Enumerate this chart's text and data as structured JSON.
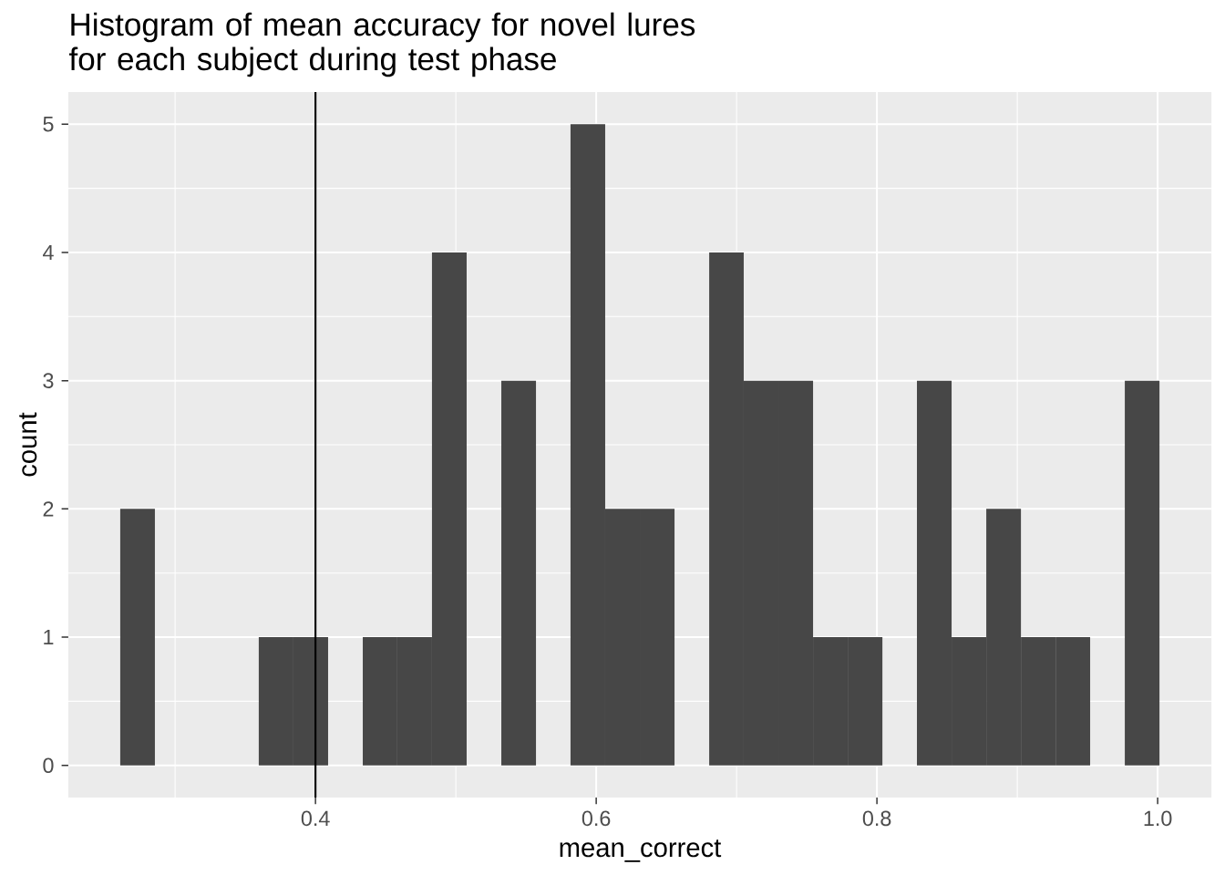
{
  "chart_data": {
    "type": "histogram",
    "title": "Histogram of mean accuracy for novel lures for each subject during test phase",
    "xlabel": "mean_correct",
    "ylabel": "count",
    "bins": [
      0.2609,
      0.2856,
      0.3103,
      0.3349,
      0.3596,
      0.3843,
      0.409,
      0.4337,
      0.4583,
      0.483,
      0.5077,
      0.5324,
      0.5571,
      0.5817,
      0.6064,
      0.6311,
      0.6558,
      0.6805,
      0.7051,
      0.7298,
      0.7545,
      0.7792,
      0.8039,
      0.8285,
      0.8532,
      0.8779,
      0.9026,
      0.9273,
      0.9519,
      0.9766,
      1.0013
    ],
    "values": [
      2,
      0,
      0,
      0,
      1,
      1,
      0,
      1,
      1,
      4,
      0,
      3,
      0,
      5,
      2,
      2,
      0,
      4,
      3,
      3,
      1,
      1,
      0,
      3,
      1,
      2,
      1,
      1,
      0,
      3
    ],
    "color": "#474747",
    "xlim": [
      0.2239,
      1.0383
    ],
    "ylim": [
      -0.25,
      5.25
    ],
    "xticks": [
      0.4,
      0.6,
      0.8,
      {
        "value": 1.0,
        "label": "1.0"
      }
    ],
    "yticks": [
      0,
      1,
      2,
      3,
      4,
      5
    ],
    "grid": true,
    "ref_lines": [
      {
        "axis": "x",
        "value": 0.4,
        "color": "#000000"
      }
    ]
  }
}
